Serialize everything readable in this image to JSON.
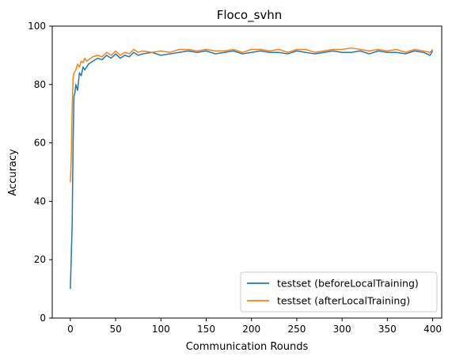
{
  "chart_data": {
    "type": "line",
    "title": "Floco_svhn",
    "xlabel": "Communication Rounds",
    "ylabel": "Accuracy",
    "xlim": [
      -20,
      410
    ],
    "ylim": [
      0,
      100
    ],
    "xticks": [
      0,
      50,
      100,
      150,
      200,
      250,
      300,
      350,
      400
    ],
    "yticks": [
      0,
      20,
      40,
      60,
      80,
      100
    ],
    "grid": false,
    "legend_position": "lower-right",
    "series": [
      {
        "name": "testset (beforeLocalTraining)",
        "color": "#1f77b4",
        "x": [
          0,
          2,
          3,
          4,
          5,
          6,
          8,
          10,
          12,
          14,
          16,
          18,
          20,
          25,
          30,
          35,
          40,
          45,
          50,
          55,
          60,
          65,
          70,
          75,
          80,
          90,
          100,
          110,
          120,
          130,
          140,
          150,
          160,
          170,
          180,
          190,
          200,
          210,
          220,
          230,
          240,
          250,
          260,
          270,
          280,
          290,
          300,
          310,
          320,
          330,
          340,
          350,
          360,
          370,
          380,
          390,
          397,
          400
        ],
        "y": [
          10,
          32,
          60,
          76,
          77,
          80,
          78,
          84,
          83,
          86,
          85,
          86,
          87,
          88,
          89,
          88.5,
          90,
          89,
          90.5,
          89,
          90,
          89.5,
          91,
          90,
          90.5,
          91,
          90,
          90.5,
          91,
          91.5,
          91,
          91.5,
          90.5,
          91,
          91.5,
          90.5,
          91,
          91.5,
          91,
          91,
          90.5,
          91.5,
          91,
          90.5,
          91,
          91.5,
          91,
          91,
          91.5,
          90.5,
          91.5,
          91,
          91,
          90.5,
          91.5,
          91,
          90,
          91.5
        ]
      },
      {
        "name": "testset (afterLocalTraining)",
        "color": "#ff7f0e",
        "x": [
          0,
          1,
          2,
          3,
          4,
          6,
          8,
          10,
          12,
          14,
          16,
          18,
          20,
          25,
          30,
          35,
          40,
          45,
          50,
          55,
          60,
          65,
          70,
          75,
          80,
          90,
          100,
          110,
          120,
          130,
          140,
          150,
          160,
          170,
          180,
          190,
          200,
          210,
          220,
          230,
          240,
          250,
          260,
          270,
          280,
          290,
          300,
          310,
          320,
          330,
          340,
          350,
          360,
          370,
          380,
          390,
          397,
          400
        ],
        "y": [
          46.5,
          55,
          72,
          82,
          84,
          85,
          87,
          86,
          88,
          87.5,
          89,
          88,
          88.5,
          89.5,
          90,
          89.5,
          91,
          90,
          91.5,
          90,
          91,
          90.5,
          92,
          91,
          91.5,
          91,
          91.5,
          91,
          92,
          92,
          91.5,
          92,
          91.5,
          91.5,
          92,
          91,
          92,
          92,
          91.5,
          92,
          91,
          92,
          92,
          91,
          91.5,
          92,
          92,
          92.5,
          92,
          91.5,
          92,
          91.5,
          92,
          91,
          92,
          91.5,
          91,
          92
        ]
      }
    ]
  }
}
